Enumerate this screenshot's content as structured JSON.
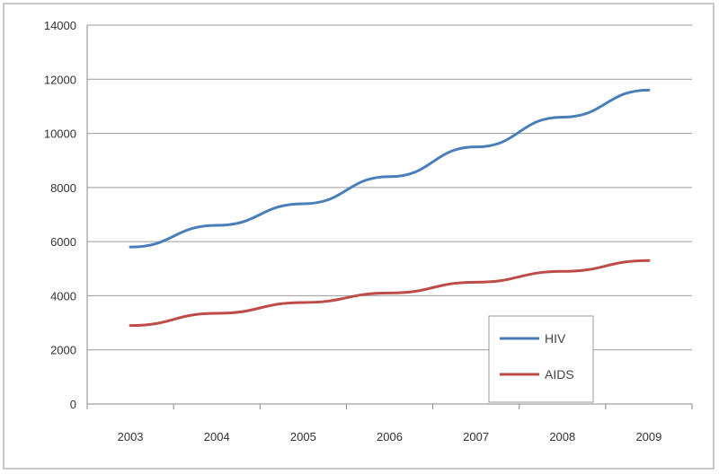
{
  "chart_data": {
    "type": "line",
    "title": "",
    "xlabel": "",
    "ylabel": "",
    "categories": [
      "2003",
      "2004",
      "2005",
      "2006",
      "2007",
      "2008",
      "2009"
    ],
    "ylim": [
      0,
      14000
    ],
    "yticks": [
      "0",
      "2000",
      "4000",
      "6000",
      "8000",
      "10000",
      "12000",
      "14000"
    ],
    "grid": true,
    "legend_position": "bottom-right",
    "series": [
      {
        "name": "HIV",
        "color": "#4a7ebb",
        "values": [
          5800,
          6600,
          7400,
          8400,
          9500,
          10600,
          11600
        ]
      },
      {
        "name": "AIDS",
        "color": "#be4b48",
        "values": [
          2900,
          3350,
          3750,
          4100,
          4500,
          4900,
          5300
        ]
      }
    ]
  }
}
